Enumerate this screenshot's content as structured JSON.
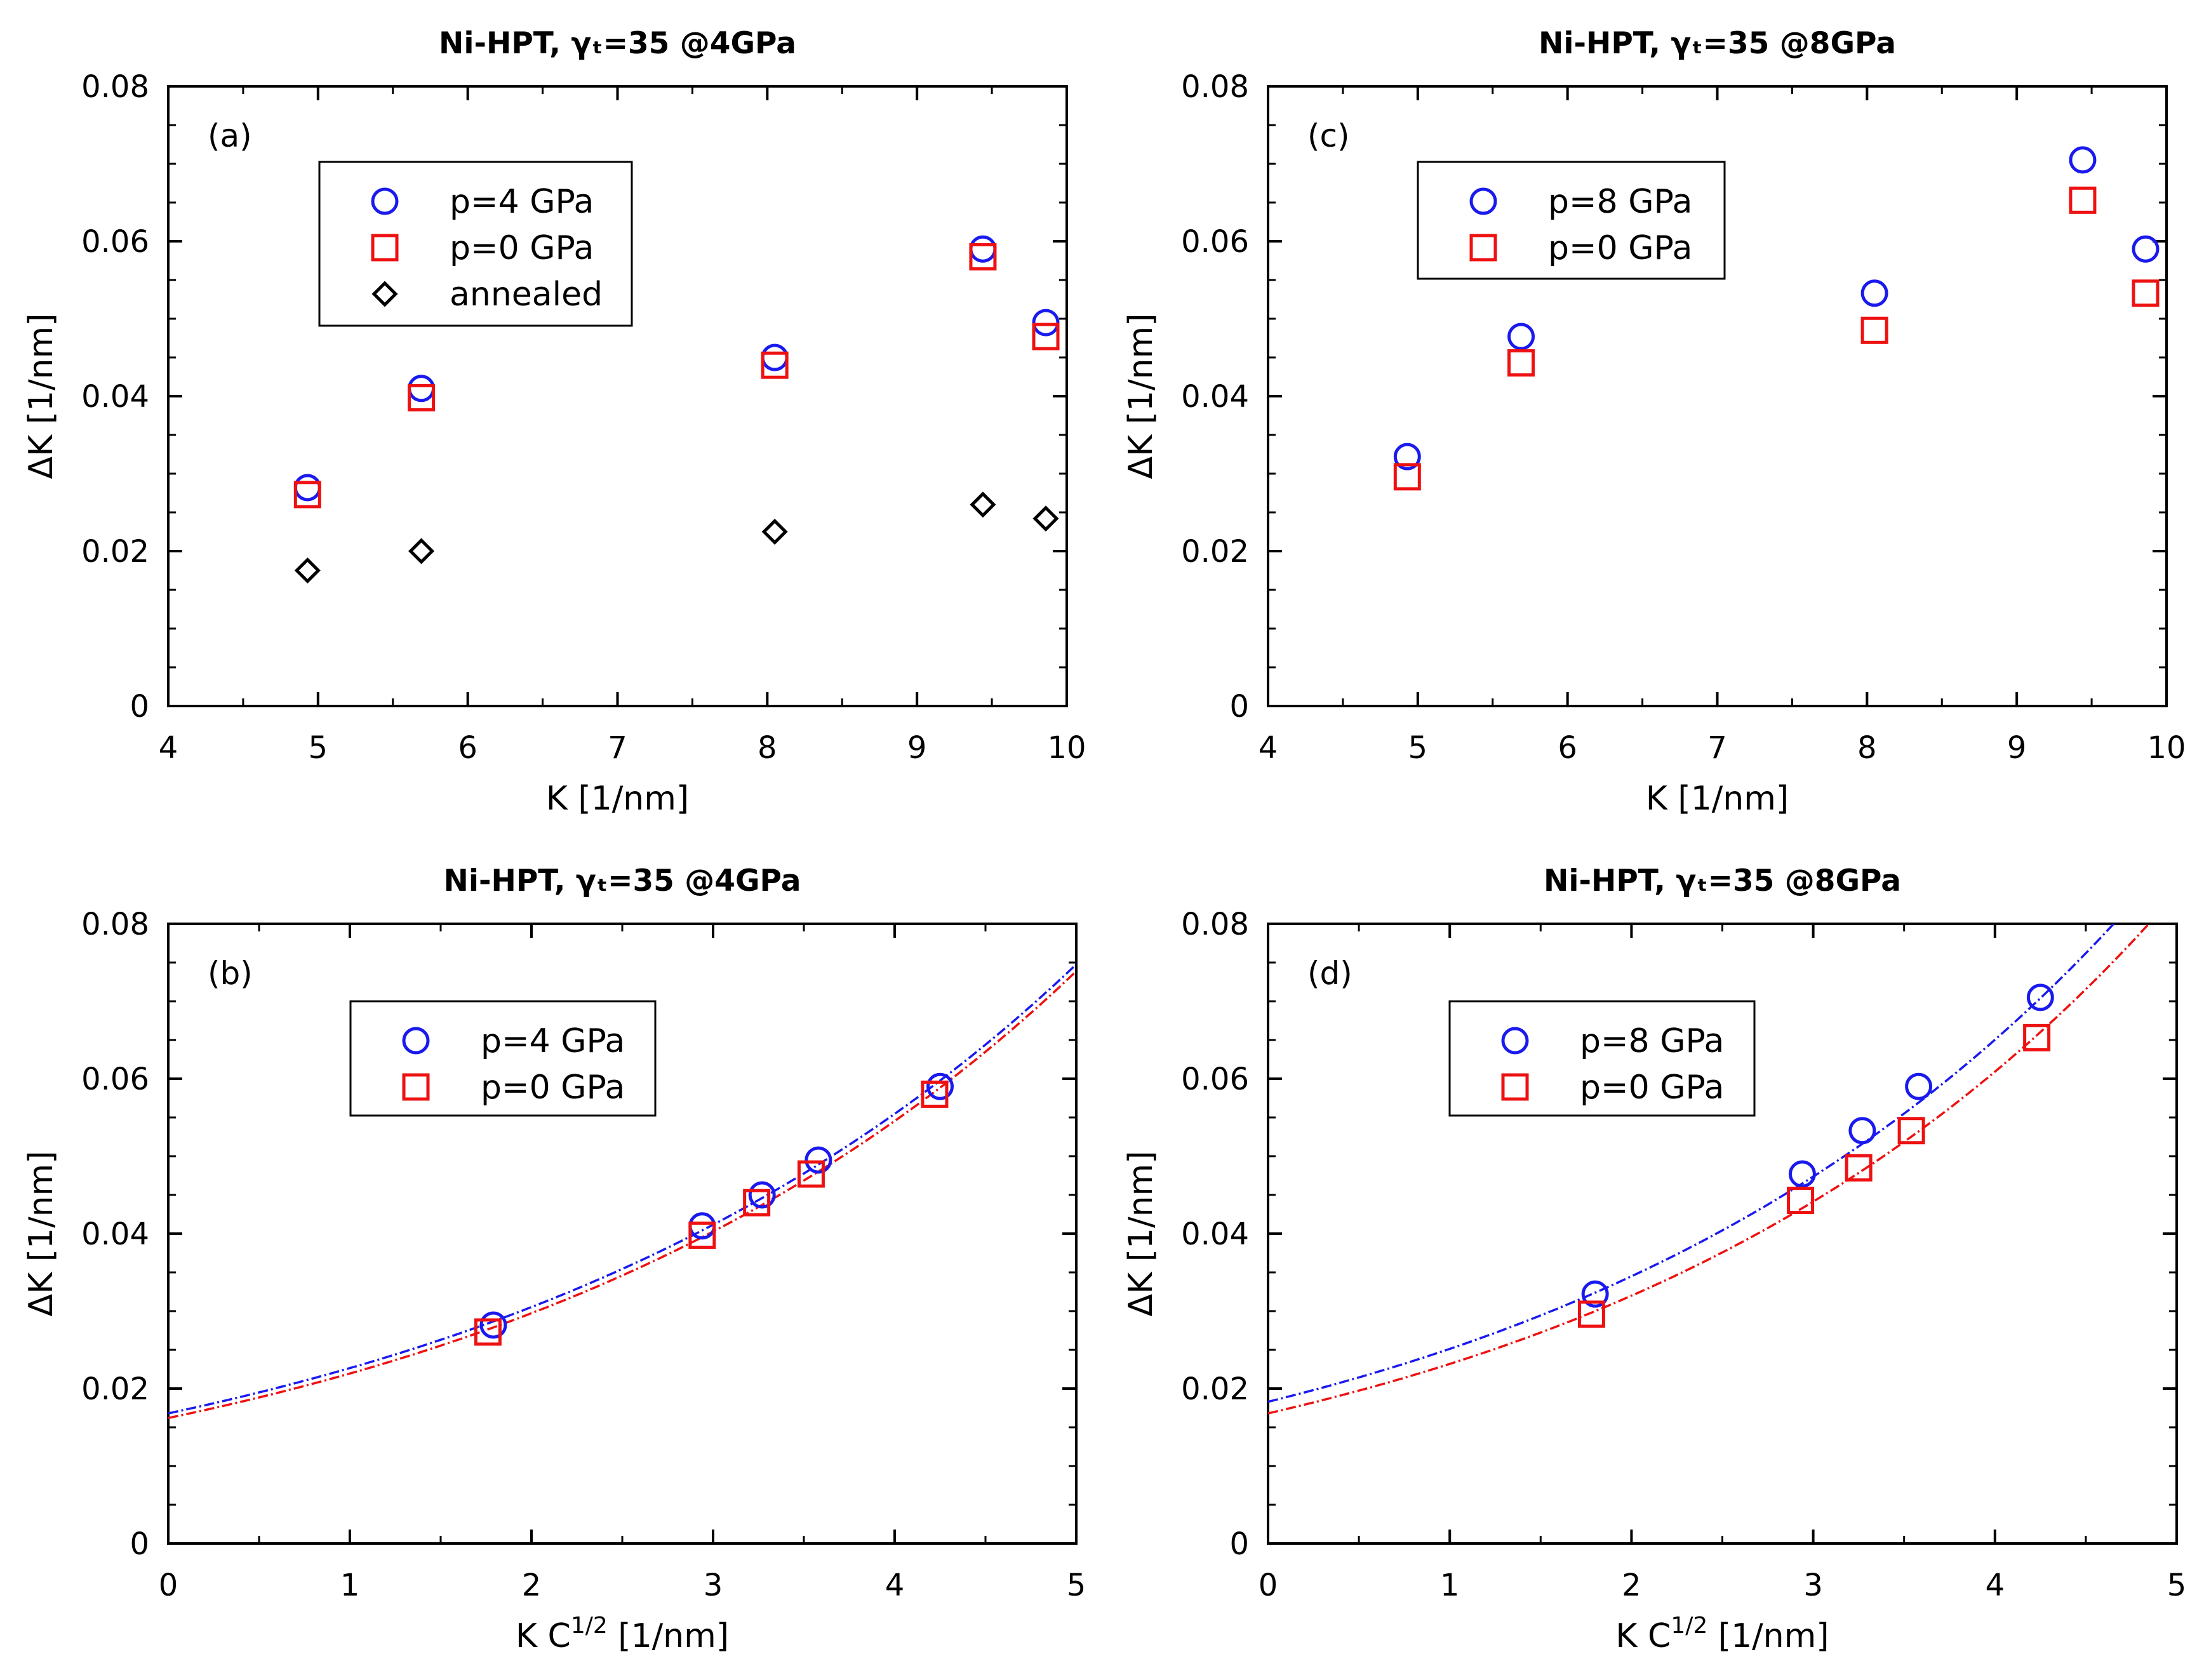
{
  "colors": {
    "p_high": "#1a1aee",
    "p_zero": "#ee1111",
    "annealed": "#000000",
    "axes": "#000000"
  },
  "chart_data": [
    {
      "id": "a",
      "type": "scatter",
      "panel_label": "(a)",
      "title": "Ni-HPT, γₜ=35 @4GPa",
      "xlabel": "K [1/nm]",
      "ylabel": "ΔK [1/nm]",
      "xlim": [
        4,
        10
      ],
      "ylim": [
        0,
        0.08
      ],
      "xticks": [
        "4",
        "5",
        "6",
        "7",
        "8",
        "9",
        "10"
      ],
      "yticks": [
        "0",
        "0.02",
        "0.04",
        "0.06",
        "0.08"
      ],
      "legend_position": "upper-left",
      "series": [
        {
          "name": "p=4 GPa",
          "marker": "circle",
          "color": "#1a1aee",
          "x": [
            4.93,
            5.69,
            8.05,
            9.44,
            9.86
          ],
          "y": [
            0.0282,
            0.041,
            0.045,
            0.059,
            0.0495
          ]
        },
        {
          "name": "p=0 GPa",
          "marker": "square",
          "color": "#ee1111",
          "x": [
            4.93,
            5.69,
            8.05,
            9.44,
            9.86
          ],
          "y": [
            0.0273,
            0.0398,
            0.044,
            0.058,
            0.0477
          ]
        },
        {
          "name": "annealed",
          "marker": "diamond",
          "color": "#000000",
          "x": [
            4.93,
            5.69,
            8.05,
            9.44,
            9.86
          ],
          "y": [
            0.0175,
            0.02,
            0.0225,
            0.026,
            0.0242
          ]
        }
      ]
    },
    {
      "id": "c",
      "type": "scatter",
      "panel_label": "(c)",
      "title": "Ni-HPT, γₜ=35 @8GPa",
      "xlabel": "K [1/nm]",
      "ylabel": "ΔK [1/nm]",
      "xlim": [
        4,
        10
      ],
      "ylim": [
        0,
        0.08
      ],
      "xticks": [
        "4",
        "5",
        "6",
        "7",
        "8",
        "9",
        "10"
      ],
      "yticks": [
        "0",
        "0.02",
        "0.04",
        "0.06",
        "0.08"
      ],
      "legend_position": "upper-left",
      "series": [
        {
          "name": "p=8 GPa",
          "marker": "circle",
          "color": "#1a1aee",
          "x": [
            4.93,
            5.69,
            8.05,
            9.44,
            9.86
          ],
          "y": [
            0.0322,
            0.0477,
            0.0533,
            0.0705,
            0.059
          ]
        },
        {
          "name": "p=0 GPa",
          "marker": "square",
          "color": "#ee1111",
          "x": [
            4.93,
            5.69,
            8.05,
            9.44,
            9.86
          ],
          "y": [
            0.0296,
            0.0443,
            0.0485,
            0.0653,
            0.0533
          ]
        }
      ]
    },
    {
      "id": "b",
      "type": "scatter",
      "panel_label": "(b)",
      "title": "Ni-HPT, γₜ=35 @4GPa",
      "xlabel": "K C",
      "xlabel_sup": "1/2",
      "xlabel_unit": " [1/nm]",
      "ylabel": "ΔK [1/nm]",
      "xlim": [
        0,
        5
      ],
      "ylim": [
        0,
        0.08
      ],
      "xticks": [
        "0",
        "1",
        "2",
        "3",
        "4",
        "5"
      ],
      "yticks": [
        "0",
        "0.02",
        "0.04",
        "0.06",
        "0.08"
      ],
      "legend_position": "upper-left",
      "series": [
        {
          "name": "p=4 GPa",
          "marker": "circle",
          "color": "#1a1aee",
          "x": [
            1.79,
            2.94,
            3.27,
            3.58,
            4.25
          ],
          "y": [
            0.0282,
            0.041,
            0.045,
            0.0495,
            0.059
          ],
          "fit": {
            "form": "a*exp(b*x)",
            "a": 0.0168,
            "b": 0.2986
          }
        },
        {
          "name": "p=0 GPa",
          "marker": "square",
          "color": "#ee1111",
          "x": [
            1.76,
            2.94,
            3.24,
            3.54,
            4.22
          ],
          "y": [
            0.0273,
            0.0398,
            0.044,
            0.0477,
            0.058
          ],
          "fit": {
            "form": "a*exp(b*x)",
            "a": 0.0162,
            "b": 0.3035
          }
        }
      ]
    },
    {
      "id": "d",
      "type": "scatter",
      "panel_label": "(d)",
      "title": "Ni-HPT, γₜ=35 @8GPa",
      "xlabel": "K C",
      "xlabel_sup": "1/2",
      "xlabel_unit": " [1/nm]",
      "ylabel": "ΔK [1/nm]",
      "xlim": [
        0,
        5
      ],
      "ylim": [
        0,
        0.08
      ],
      "xticks": [
        "0",
        "1",
        "2",
        "3",
        "4",
        "5"
      ],
      "yticks": [
        "0",
        "0.02",
        "0.04",
        "0.06",
        "0.08"
      ],
      "legend_position": "upper-left",
      "series": [
        {
          "name": "p=8 GPa",
          "marker": "circle",
          "color": "#1a1aee",
          "x": [
            1.8,
            2.94,
            3.27,
            3.58,
            4.25
          ],
          "y": [
            0.0322,
            0.0477,
            0.0533,
            0.059,
            0.0705
          ],
          "fit": {
            "form": "a*exp(b*x)",
            "a": 0.0183,
            "b": 0.317
          }
        },
        {
          "name": "p=0 GPa",
          "marker": "square",
          "color": "#ee1111",
          "x": [
            1.78,
            2.93,
            3.25,
            3.54,
            4.23
          ],
          "y": [
            0.0296,
            0.0443,
            0.0485,
            0.0533,
            0.0653
          ],
          "fit": {
            "form": "a*exp(b*x)",
            "a": 0.0168,
            "b": 0.322
          }
        }
      ]
    }
  ]
}
